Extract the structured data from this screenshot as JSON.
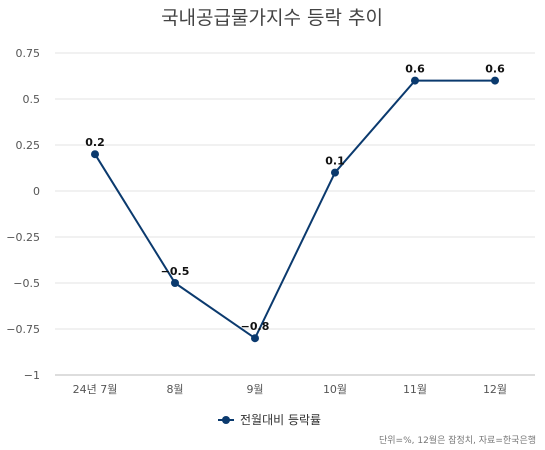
{
  "chart_data": {
    "type": "line",
    "title": "국내공급물가지수 등락 추이",
    "categories": [
      "24년 7월",
      "8월",
      "9월",
      "10월",
      "11월",
      "12월"
    ],
    "series": [
      {
        "name": "전월대비 등락률",
        "values": [
          0.2,
          -0.5,
          -0.8,
          0.1,
          0.6,
          0.6
        ],
        "labels": [
          "0.2",
          "−0.5",
          "−0.8",
          "0.1",
          "0.6",
          "0.6"
        ],
        "color": "#0b3a6e"
      }
    ],
    "ylim": [
      -1,
      0.75
    ],
    "yticks": [
      0.75,
      0.5,
      0.25,
      0,
      -0.25,
      -0.5,
      -0.75,
      -1
    ],
    "ytick_labels": [
      "0.75",
      "0.5",
      "0.25",
      "0",
      "−0.25",
      "−0.5",
      "−0.75",
      "−1"
    ],
    "grid": true,
    "legend_position": "bottom",
    "note": "단위=%, 12월은 잠정치, 자료=한국은행"
  },
  "colors": {
    "line": "#0b3a6e",
    "grid": "#e3e3e3",
    "axis": "#bbbbbb"
  }
}
